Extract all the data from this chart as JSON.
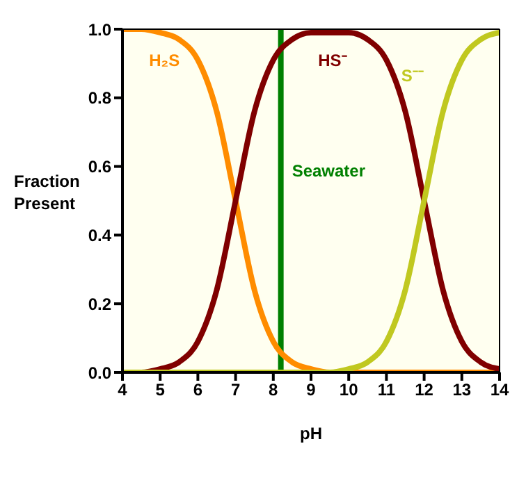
{
  "chart_data": {
    "type": "line",
    "xlabel": "pH",
    "ylabel": "Fraction Present",
    "x": [
      4,
      4.5,
      5,
      5.5,
      6,
      6.5,
      7,
      7.5,
      8,
      8.5,
      9,
      9.5,
      10,
      10.5,
      11,
      11.5,
      12,
      12.5,
      13,
      13.5,
      14
    ],
    "series": [
      {
        "name": "H₂S",
        "color": "#ff8c00",
        "values": [
          1.0,
          1.0,
          0.99,
          0.97,
          0.91,
          0.76,
          0.5,
          0.24,
          0.09,
          0.03,
          0.01,
          0,
          0,
          0,
          0,
          0,
          0,
          0,
          0,
          0,
          0
        ]
      },
      {
        "name": "HS⁻",
        "color": "#800000",
        "values": [
          0,
          0,
          0.01,
          0.03,
          0.09,
          0.24,
          0.5,
          0.76,
          0.91,
          0.97,
          0.99,
          0.99,
          0.99,
          0.97,
          0.91,
          0.76,
          0.5,
          0.24,
          0.09,
          0.03,
          0.01
        ]
      },
      {
        "name": "S⁻⁻",
        "color": "#c0c820",
        "values": [
          0,
          0,
          0,
          0,
          0,
          0,
          0,
          0,
          0,
          0,
          0,
          0,
          0.01,
          0.03,
          0.09,
          0.24,
          0.5,
          0.76,
          0.91,
          0.97,
          0.99
        ]
      }
    ],
    "xlim": [
      4,
      14
    ],
    "xticks": [
      4,
      5,
      6,
      7,
      8,
      9,
      10,
      11,
      12,
      13,
      14
    ],
    "ylim": [
      0,
      1
    ],
    "yticks": [
      {
        "value": 0,
        "label": "0.0"
      },
      {
        "value": 0.2,
        "label": "0.2"
      },
      {
        "value": 0.4,
        "label": "0.4"
      },
      {
        "value": 0.6,
        "label": "0.6"
      },
      {
        "value": 0.8,
        "label": "0.8"
      },
      {
        "value": 1,
        "label": "1.0"
      }
    ],
    "ref_lines": [
      {
        "axis": "x",
        "value": 8.2,
        "label": "Seawater",
        "color": "#008000"
      }
    ],
    "legend": false,
    "grid": false,
    "marker": "none",
    "line_style": "solid"
  }
}
